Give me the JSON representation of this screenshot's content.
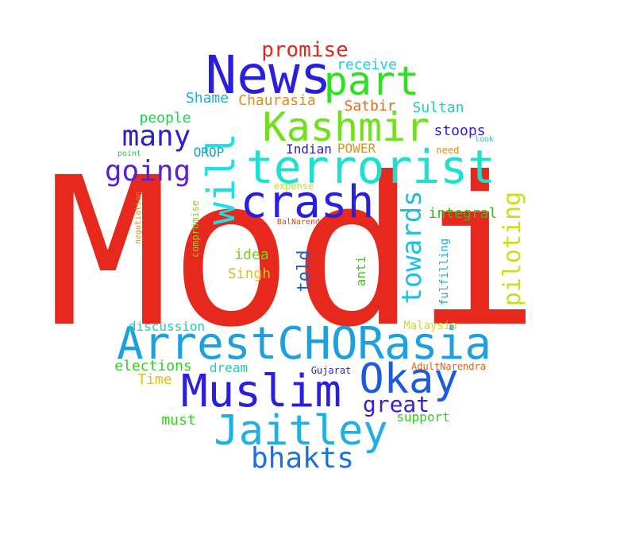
{
  "words": [
    {
      "text": "Modi",
      "color": "#e6291c",
      "vertical": false
    },
    {
      "text": "News",
      "color": "#2a1fe0",
      "vertical": false
    },
    {
      "text": "part",
      "color": "#2fe01c",
      "vertical": false
    },
    {
      "text": "promise",
      "color": "#e0291c",
      "vertical": false
    },
    {
      "text": "Kashmir",
      "color": "#6fe01c",
      "vertical": false
    },
    {
      "text": "terrorist",
      "color": "#1ce0d0",
      "vertical": false
    },
    {
      "text": "will",
      "color": "#1ce0e6",
      "vertical": true
    },
    {
      "text": "crash",
      "color": "#2a1fe0",
      "vertical": false
    },
    {
      "text": "many",
      "color": "#2a1fd0",
      "vertical": false
    },
    {
      "text": "going",
      "color": "#5a1fd6",
      "vertical": false
    },
    {
      "text": "towards",
      "color": "#1cc0e0",
      "vertical": true
    },
    {
      "text": "piloting",
      "color": "#c6e01c",
      "vertical": true
    },
    {
      "text": "ArrestCHORasia",
      "color": "#1ca0e0",
      "vertical": false
    },
    {
      "text": "Muslim",
      "color": "#2a1fe0",
      "vertical": false
    },
    {
      "text": "Okay",
      "color": "#1c5ae0",
      "vertical": false
    },
    {
      "text": "Jaitley",
      "color": "#1cb0e6",
      "vertical": false
    },
    {
      "text": "great",
      "color": "#3a1fd6",
      "vertical": false
    },
    {
      "text": "bhakts",
      "color": "#1c70e0",
      "vertical": false
    },
    {
      "text": "receive",
      "color": "#1cd0e6",
      "vertical": false
    },
    {
      "text": "Shame",
      "color": "#1cb0e0",
      "vertical": false
    },
    {
      "text": "Chaurasia",
      "color": "#e08a1c",
      "vertical": false
    },
    {
      "text": "Satbir",
      "color": "#e06a1c",
      "vertical": false
    },
    {
      "text": "Sultan",
      "color": "#1cd0c0",
      "vertical": false
    },
    {
      "text": "people",
      "color": "#1cd050",
      "vertical": false
    },
    {
      "text": "stoops",
      "color": "#3a1fd0",
      "vertical": false
    },
    {
      "text": "OROP",
      "color": "#1ca0c0",
      "vertical": false
    },
    {
      "text": "Indian",
      "color": "#2a1fc0",
      "vertical": false
    },
    {
      "text": "POWER",
      "color": "#e0901c",
      "vertical": false
    },
    {
      "text": "need",
      "color": "#e08a1c",
      "vertical": false
    },
    {
      "text": "look",
      "color": "#1cc0e0",
      "vertical": false
    },
    {
      "text": "point",
      "color": "#1cd060",
      "vertical": false
    },
    {
      "text": "expense",
      "color": "#c0e01c",
      "vertical": false
    },
    {
      "text": "integral",
      "color": "#30c01c",
      "vertical": false
    },
    {
      "text": "negotiation",
      "color": "#e08a1c",
      "vertical": true
    },
    {
      "text": "compromise",
      "color": "#8ad01c",
      "vertical": true
    },
    {
      "text": "BalNarendra",
      "color": "#e0401c",
      "vertical": false
    },
    {
      "text": "told",
      "color": "#1c60d0",
      "vertical": true
    },
    {
      "text": "idea",
      "color": "#7ad01c",
      "vertical": false
    },
    {
      "text": "Singh",
      "color": "#e0c01c",
      "vertical": false
    },
    {
      "text": "anti",
      "color": "#50c01c",
      "vertical": true
    },
    {
      "text": "fulfilling",
      "color": "#1cb0d0",
      "vertical": true
    },
    {
      "text": "discussion",
      "color": "#1cd0b0",
      "vertical": false
    },
    {
      "text": "Malaysia",
      "color": "#d0e01c",
      "vertical": false
    },
    {
      "text": "elections",
      "color": "#30d01c",
      "vertical": false
    },
    {
      "text": "dream",
      "color": "#1cd0b0",
      "vertical": false
    },
    {
      "text": "Time",
      "color": "#e0c01c",
      "vertical": false
    },
    {
      "text": "Gujarat",
      "color": "#2a1fd0",
      "vertical": false
    },
    {
      "text": "AdultNarendra",
      "color": "#e0601c",
      "vertical": false
    },
    {
      "text": "must",
      "color": "#30d01c",
      "vertical": false
    },
    {
      "text": "support",
      "color": "#30d01c",
      "vertical": false
    }
  ]
}
